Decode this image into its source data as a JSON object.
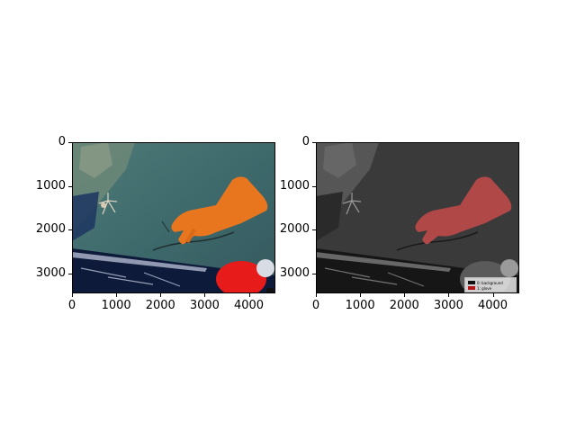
{
  "left_panel": {
    "x_ticks": [
      "0",
      "1000",
      "2000",
      "3000",
      "4000"
    ],
    "y_ticks": [
      "0",
      "1000",
      "2000",
      "3000"
    ]
  },
  "right_panel": {
    "x_ticks": [
      "0",
      "1000",
      "2000",
      "3000",
      "4000"
    ],
    "y_ticks": [
      "0",
      "1000",
      "2000",
      "3000"
    ],
    "legend": [
      {
        "label": "0: background",
        "color": "#111111"
      },
      {
        "label": "1: glove",
        "color": "#b41414"
      }
    ]
  },
  "colors": {
    "seafloor": "#3f6a6e",
    "glove": "#e8761f",
    "glove_mask": "#b04848",
    "debris_red": "#e81b1b"
  }
}
